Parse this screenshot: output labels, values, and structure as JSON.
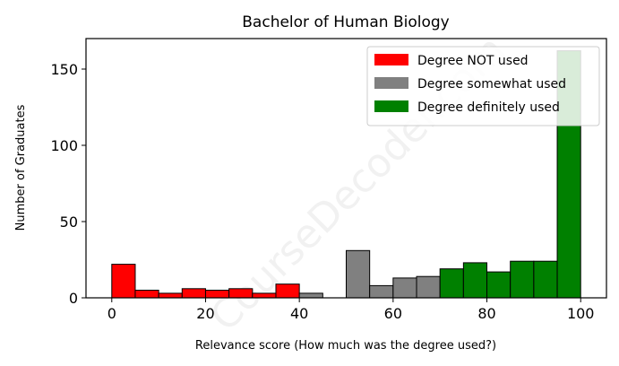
{
  "watermark": "CourseDecoder.com",
  "chart_data": {
    "type": "bar",
    "title": "Bachelor of Human Biology",
    "xlabel": "Relevance score (How much was the degree used?)",
    "ylabel": "Number of Graduates",
    "xlim": [
      -5.5,
      105.5
    ],
    "ylim": [
      0,
      170
    ],
    "xticks": [
      0,
      20,
      40,
      60,
      80,
      100
    ],
    "yticks": [
      0,
      50,
      100,
      150
    ],
    "bin_width": 5,
    "legend_position": "top-right",
    "grid": false,
    "series": [
      {
        "name": "Degree NOT used",
        "color": "#ff0000",
        "bins": [
          {
            "x": 0,
            "value": 22
          },
          {
            "x": 5,
            "value": 5
          },
          {
            "x": 10,
            "value": 3
          },
          {
            "x": 15,
            "value": 6
          },
          {
            "x": 20,
            "value": 5
          },
          {
            "x": 25,
            "value": 6
          },
          {
            "x": 30,
            "value": 3
          },
          {
            "x": 35,
            "value": 9
          }
        ]
      },
      {
        "name": "Degree somewhat used",
        "color": "#808080",
        "bins": [
          {
            "x": 40,
            "value": 3
          },
          {
            "x": 50,
            "value": 31
          },
          {
            "x": 55,
            "value": 8
          },
          {
            "x": 60,
            "value": 13
          },
          {
            "x": 65,
            "value": 14
          }
        ]
      },
      {
        "name": "Degree definitely used",
        "color": "#008000",
        "bins": [
          {
            "x": 70,
            "value": 19
          },
          {
            "x": 75,
            "value": 23
          },
          {
            "x": 80,
            "value": 17
          },
          {
            "x": 85,
            "value": 24
          },
          {
            "x": 90,
            "value": 24
          },
          {
            "x": 95,
            "value": 162
          }
        ]
      }
    ]
  }
}
